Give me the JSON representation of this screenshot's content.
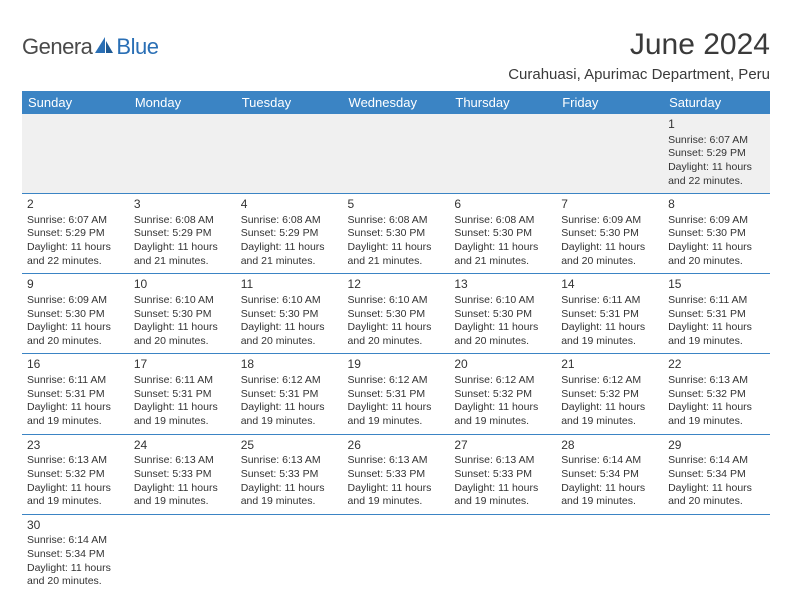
{
  "brand": {
    "part1": "Genera",
    "part2": "Blue"
  },
  "title": "June 2024",
  "location": "Curahuasi, Apurimac Department, Peru",
  "colors": {
    "header_bg": "#3b84c4",
    "header_text": "#ffffff",
    "cell_border": "#3b84c4",
    "first_row_bg": "#f0f0f0",
    "brand_blue": "#2a6fb5",
    "text": "#333333"
  },
  "day_headers": [
    "Sunday",
    "Monday",
    "Tuesday",
    "Wednesday",
    "Thursday",
    "Friday",
    "Saturday"
  ],
  "weeks": [
    [
      null,
      null,
      null,
      null,
      null,
      null,
      {
        "n": "1",
        "sr": "6:07 AM",
        "ss": "5:29 PM",
        "dl": "11 hours and 22 minutes."
      }
    ],
    [
      {
        "n": "2",
        "sr": "6:07 AM",
        "ss": "5:29 PM",
        "dl": "11 hours and 22 minutes."
      },
      {
        "n": "3",
        "sr": "6:08 AM",
        "ss": "5:29 PM",
        "dl": "11 hours and 21 minutes."
      },
      {
        "n": "4",
        "sr": "6:08 AM",
        "ss": "5:29 PM",
        "dl": "11 hours and 21 minutes."
      },
      {
        "n": "5",
        "sr": "6:08 AM",
        "ss": "5:30 PM",
        "dl": "11 hours and 21 minutes."
      },
      {
        "n": "6",
        "sr": "6:08 AM",
        "ss": "5:30 PM",
        "dl": "11 hours and 21 minutes."
      },
      {
        "n": "7",
        "sr": "6:09 AM",
        "ss": "5:30 PM",
        "dl": "11 hours and 20 minutes."
      },
      {
        "n": "8",
        "sr": "6:09 AM",
        "ss": "5:30 PM",
        "dl": "11 hours and 20 minutes."
      }
    ],
    [
      {
        "n": "9",
        "sr": "6:09 AM",
        "ss": "5:30 PM",
        "dl": "11 hours and 20 minutes."
      },
      {
        "n": "10",
        "sr": "6:10 AM",
        "ss": "5:30 PM",
        "dl": "11 hours and 20 minutes."
      },
      {
        "n": "11",
        "sr": "6:10 AM",
        "ss": "5:30 PM",
        "dl": "11 hours and 20 minutes."
      },
      {
        "n": "12",
        "sr": "6:10 AM",
        "ss": "5:30 PM",
        "dl": "11 hours and 20 minutes."
      },
      {
        "n": "13",
        "sr": "6:10 AM",
        "ss": "5:30 PM",
        "dl": "11 hours and 20 minutes."
      },
      {
        "n": "14",
        "sr": "6:11 AM",
        "ss": "5:31 PM",
        "dl": "11 hours and 19 minutes."
      },
      {
        "n": "15",
        "sr": "6:11 AM",
        "ss": "5:31 PM",
        "dl": "11 hours and 19 minutes."
      }
    ],
    [
      {
        "n": "16",
        "sr": "6:11 AM",
        "ss": "5:31 PM",
        "dl": "11 hours and 19 minutes."
      },
      {
        "n": "17",
        "sr": "6:11 AM",
        "ss": "5:31 PM",
        "dl": "11 hours and 19 minutes."
      },
      {
        "n": "18",
        "sr": "6:12 AM",
        "ss": "5:31 PM",
        "dl": "11 hours and 19 minutes."
      },
      {
        "n": "19",
        "sr": "6:12 AM",
        "ss": "5:31 PM",
        "dl": "11 hours and 19 minutes."
      },
      {
        "n": "20",
        "sr": "6:12 AM",
        "ss": "5:32 PM",
        "dl": "11 hours and 19 minutes."
      },
      {
        "n": "21",
        "sr": "6:12 AM",
        "ss": "5:32 PM",
        "dl": "11 hours and 19 minutes."
      },
      {
        "n": "22",
        "sr": "6:13 AM",
        "ss": "5:32 PM",
        "dl": "11 hours and 19 minutes."
      }
    ],
    [
      {
        "n": "23",
        "sr": "6:13 AM",
        "ss": "5:32 PM",
        "dl": "11 hours and 19 minutes."
      },
      {
        "n": "24",
        "sr": "6:13 AM",
        "ss": "5:33 PM",
        "dl": "11 hours and 19 minutes."
      },
      {
        "n": "25",
        "sr": "6:13 AM",
        "ss": "5:33 PM",
        "dl": "11 hours and 19 minutes."
      },
      {
        "n": "26",
        "sr": "6:13 AM",
        "ss": "5:33 PM",
        "dl": "11 hours and 19 minutes."
      },
      {
        "n": "27",
        "sr": "6:13 AM",
        "ss": "5:33 PM",
        "dl": "11 hours and 19 minutes."
      },
      {
        "n": "28",
        "sr": "6:14 AM",
        "ss": "5:34 PM",
        "dl": "11 hours and 19 minutes."
      },
      {
        "n": "29",
        "sr": "6:14 AM",
        "ss": "5:34 PM",
        "dl": "11 hours and 20 minutes."
      }
    ],
    [
      {
        "n": "30",
        "sr": "6:14 AM",
        "ss": "5:34 PM",
        "dl": "11 hours and 20 minutes."
      },
      null,
      null,
      null,
      null,
      null,
      null
    ]
  ],
  "labels": {
    "sunrise": "Sunrise:",
    "sunset": "Sunset:",
    "daylight": "Daylight:"
  }
}
